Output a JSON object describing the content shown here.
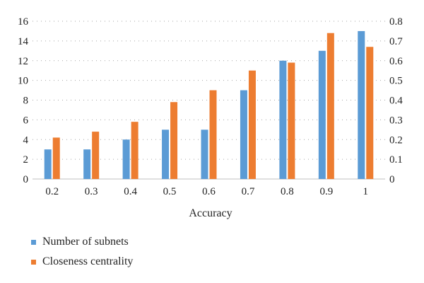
{
  "chart_data": {
    "type": "bar",
    "xlabel": "Accuracy",
    "categories": [
      "0.2",
      "0.3",
      "0.4",
      "0.5",
      "0.6",
      "0.7",
      "0.8",
      "0.9",
      "1"
    ],
    "series": [
      {
        "name": "Number of subnets",
        "axis": "left",
        "color": "#5b9bd5",
        "values": [
          3,
          3,
          4,
          5,
          5,
          9,
          12,
          13,
          15
        ]
      },
      {
        "name": "Closeness centrality",
        "axis": "right",
        "color": "#ed7d31",
        "values": [
          0.21,
          0.24,
          0.29,
          0.39,
          0.45,
          0.55,
          0.59,
          0.74,
          0.67
        ]
      }
    ],
    "y_left": {
      "min": 0,
      "max": 16,
      "ticks": [
        "0",
        "2",
        "4",
        "6",
        "8",
        "10",
        "12",
        "14",
        "16"
      ]
    },
    "y_right": {
      "min": 0,
      "max": 0.8,
      "ticks": [
        "0",
        "0.1",
        "0.2",
        "0.3",
        "0.4",
        "0.5",
        "0.6",
        "0.7",
        "0.8"
      ]
    },
    "grid": "dotted horizontal",
    "legend_position": "bottom-left"
  }
}
